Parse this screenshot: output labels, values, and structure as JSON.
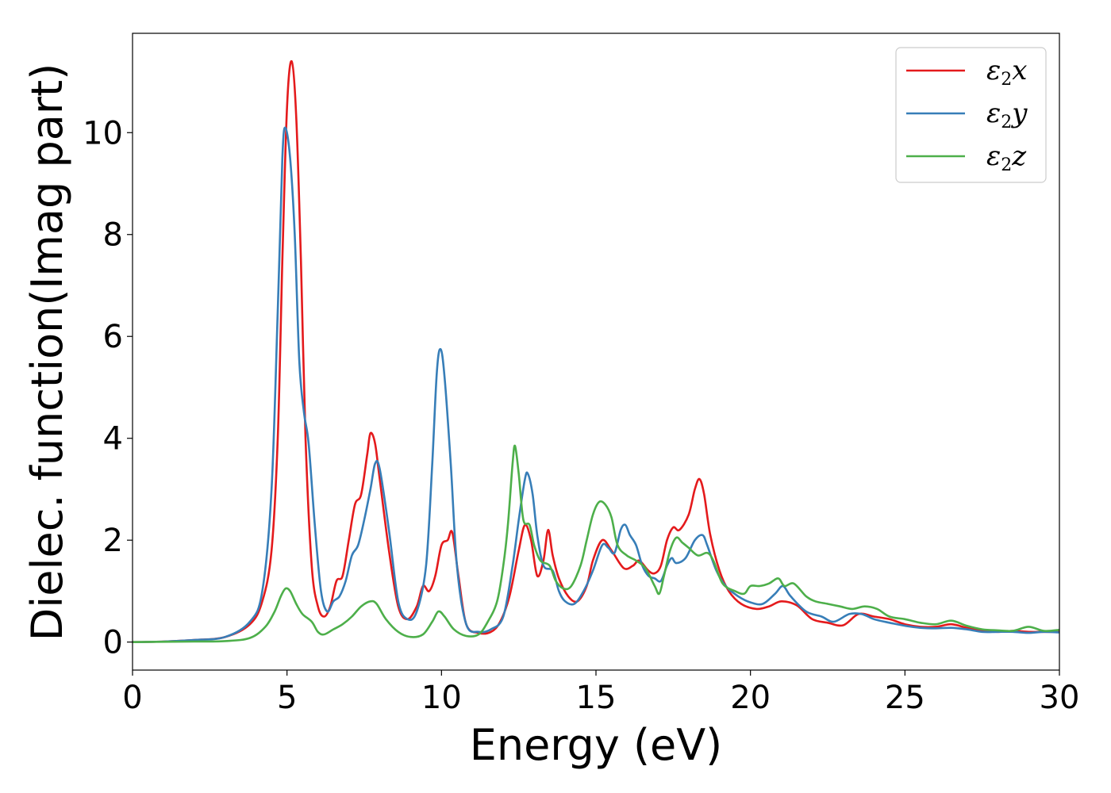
{
  "chart_data": {
    "type": "line",
    "xlabel": "Energy (eV)",
    "ylabel": "Dielec. function(Imag part)",
    "xlim": [
      0,
      30
    ],
    "ylim": [
      -0.55,
      11.95
    ],
    "xticks": [
      0,
      5,
      10,
      15,
      20,
      25,
      30
    ],
    "yticks": [
      0,
      2,
      4,
      6,
      8,
      10
    ],
    "xtick_labels": [
      "0",
      "5",
      "10",
      "15",
      "20",
      "25",
      "30"
    ],
    "ytick_labels": [
      "0",
      "2",
      "4",
      "6",
      "8",
      "10"
    ],
    "grid": false,
    "legend_position": "top-right",
    "series": [
      {
        "name": "ε2x",
        "legend_main": "ε",
        "legend_sub": "2",
        "legend_suffix": "x",
        "color": "#e41a1c",
        "points": [
          [
            0,
            0
          ],
          [
            1,
            0.01
          ],
          [
            2,
            0.04
          ],
          [
            3,
            0.1
          ],
          [
            3.8,
            0.35
          ],
          [
            4.2,
            0.8
          ],
          [
            4.5,
            1.8
          ],
          [
            4.7,
            4.0
          ],
          [
            4.85,
            7.5
          ],
          [
            5.0,
            10.5
          ],
          [
            5.15,
            11.4
          ],
          [
            5.3,
            10.3
          ],
          [
            5.45,
            7.5
          ],
          [
            5.6,
            4.0
          ],
          [
            5.8,
            1.5
          ],
          [
            6.0,
            0.7
          ],
          [
            6.2,
            0.5
          ],
          [
            6.4,
            0.7
          ],
          [
            6.6,
            1.2
          ],
          [
            6.8,
            1.3
          ],
          [
            7.0,
            2.0
          ],
          [
            7.2,
            2.7
          ],
          [
            7.4,
            2.9
          ],
          [
            7.6,
            3.7
          ],
          [
            7.7,
            4.1
          ],
          [
            7.85,
            3.9
          ],
          [
            8.0,
            3.2
          ],
          [
            8.3,
            1.8
          ],
          [
            8.6,
            0.7
          ],
          [
            8.9,
            0.45
          ],
          [
            9.2,
            0.7
          ],
          [
            9.4,
            1.1
          ],
          [
            9.6,
            1.0
          ],
          [
            9.8,
            1.3
          ],
          [
            10.0,
            1.9
          ],
          [
            10.2,
            2.0
          ],
          [
            10.35,
            2.15
          ],
          [
            10.55,
            1.3
          ],
          [
            10.8,
            0.35
          ],
          [
            11.2,
            0.18
          ],
          [
            11.6,
            0.2
          ],
          [
            11.9,
            0.4
          ],
          [
            12.2,
            0.9
          ],
          [
            12.5,
            1.8
          ],
          [
            12.7,
            2.3
          ],
          [
            12.9,
            2.0
          ],
          [
            13.1,
            1.3
          ],
          [
            13.3,
            1.6
          ],
          [
            13.45,
            2.2
          ],
          [
            13.6,
            1.7
          ],
          [
            13.8,
            1.25
          ],
          [
            14.1,
            0.9
          ],
          [
            14.4,
            0.8
          ],
          [
            14.7,
            1.1
          ],
          [
            14.9,
            1.6
          ],
          [
            15.2,
            2.0
          ],
          [
            15.5,
            1.8
          ],
          [
            15.9,
            1.45
          ],
          [
            16.2,
            1.5
          ],
          [
            16.4,
            1.6
          ],
          [
            16.7,
            1.4
          ],
          [
            16.9,
            1.35
          ],
          [
            17.1,
            1.5
          ],
          [
            17.3,
            2.0
          ],
          [
            17.5,
            2.25
          ],
          [
            17.7,
            2.2
          ],
          [
            18.0,
            2.5
          ],
          [
            18.2,
            3.0
          ],
          [
            18.35,
            3.2
          ],
          [
            18.5,
            2.9
          ],
          [
            18.7,
            2.1
          ],
          [
            19.0,
            1.4
          ],
          [
            19.3,
            1.0
          ],
          [
            19.7,
            0.75
          ],
          [
            20.2,
            0.65
          ],
          [
            20.6,
            0.7
          ],
          [
            21.0,
            0.8
          ],
          [
            21.5,
            0.72
          ],
          [
            22.0,
            0.45
          ],
          [
            22.5,
            0.38
          ],
          [
            23.0,
            0.33
          ],
          [
            23.5,
            0.55
          ],
          [
            24.0,
            0.5
          ],
          [
            24.5,
            0.45
          ],
          [
            25.0,
            0.35
          ],
          [
            25.5,
            0.3
          ],
          [
            26.0,
            0.3
          ],
          [
            26.5,
            0.35
          ],
          [
            27.0,
            0.28
          ],
          [
            27.5,
            0.22
          ],
          [
            28.0,
            0.2
          ],
          [
            28.5,
            0.22
          ],
          [
            29.0,
            0.2
          ],
          [
            29.5,
            0.2
          ],
          [
            30.0,
            0.2
          ]
        ]
      },
      {
        "name": "ε2y",
        "legend_main": "ε",
        "legend_sub": "2",
        "legend_suffix": "y",
        "color": "#377eb8",
        "points": [
          [
            0,
            0
          ],
          [
            1,
            0.01
          ],
          [
            2,
            0.04
          ],
          [
            3,
            0.1
          ],
          [
            3.8,
            0.4
          ],
          [
            4.2,
            1.0
          ],
          [
            4.5,
            3.0
          ],
          [
            4.7,
            6.5
          ],
          [
            4.85,
            9.5
          ],
          [
            4.95,
            10.1
          ],
          [
            5.1,
            9.5
          ],
          [
            5.25,
            8.0
          ],
          [
            5.4,
            5.5
          ],
          [
            5.55,
            4.5
          ],
          [
            5.7,
            3.9
          ],
          [
            5.9,
            2.3
          ],
          [
            6.1,
            1.0
          ],
          [
            6.3,
            0.6
          ],
          [
            6.5,
            0.8
          ],
          [
            6.7,
            0.9
          ],
          [
            6.9,
            1.2
          ],
          [
            7.1,
            1.7
          ],
          [
            7.3,
            1.9
          ],
          [
            7.5,
            2.4
          ],
          [
            7.7,
            3.0
          ],
          [
            7.85,
            3.5
          ],
          [
            8.0,
            3.4
          ],
          [
            8.3,
            2.2
          ],
          [
            8.6,
            0.8
          ],
          [
            8.9,
            0.45
          ],
          [
            9.2,
            0.6
          ],
          [
            9.5,
            1.5
          ],
          [
            9.7,
            3.5
          ],
          [
            9.85,
            5.3
          ],
          [
            9.97,
            5.75
          ],
          [
            10.1,
            5.2
          ],
          [
            10.3,
            3.5
          ],
          [
            10.5,
            1.5
          ],
          [
            10.8,
            0.35
          ],
          [
            11.2,
            0.2
          ],
          [
            11.6,
            0.25
          ],
          [
            12.0,
            0.5
          ],
          [
            12.3,
            1.5
          ],
          [
            12.5,
            2.4
          ],
          [
            12.7,
            3.2
          ],
          [
            12.8,
            3.3
          ],
          [
            12.95,
            2.9
          ],
          [
            13.1,
            2.1
          ],
          [
            13.3,
            1.5
          ],
          [
            13.6,
            1.4
          ],
          [
            13.8,
            1.0
          ],
          [
            14.0,
            0.8
          ],
          [
            14.3,
            0.75
          ],
          [
            14.6,
            1.0
          ],
          [
            14.9,
            1.4
          ],
          [
            15.2,
            1.9
          ],
          [
            15.4,
            1.85
          ],
          [
            15.6,
            1.75
          ],
          [
            15.8,
            2.2
          ],
          [
            15.95,
            2.3
          ],
          [
            16.1,
            2.1
          ],
          [
            16.3,
            1.9
          ],
          [
            16.5,
            1.5
          ],
          [
            16.7,
            1.3
          ],
          [
            16.9,
            1.25
          ],
          [
            17.1,
            1.2
          ],
          [
            17.3,
            1.5
          ],
          [
            17.45,
            1.65
          ],
          [
            17.6,
            1.55
          ],
          [
            17.9,
            1.65
          ],
          [
            18.2,
            2.0
          ],
          [
            18.45,
            2.1
          ],
          [
            18.6,
            1.9
          ],
          [
            18.9,
            1.4
          ],
          [
            19.2,
            1.1
          ],
          [
            19.6,
            0.9
          ],
          [
            20.0,
            0.78
          ],
          [
            20.4,
            0.75
          ],
          [
            20.8,
            0.95
          ],
          [
            21.05,
            1.1
          ],
          [
            21.3,
            0.9
          ],
          [
            21.8,
            0.6
          ],
          [
            22.3,
            0.5
          ],
          [
            22.7,
            0.4
          ],
          [
            23.2,
            0.55
          ],
          [
            23.6,
            0.55
          ],
          [
            24.0,
            0.45
          ],
          [
            24.5,
            0.38
          ],
          [
            25.0,
            0.32
          ],
          [
            25.5,
            0.28
          ],
          [
            26.0,
            0.27
          ],
          [
            26.5,
            0.28
          ],
          [
            27.0,
            0.25
          ],
          [
            27.5,
            0.2
          ],
          [
            28.0,
            0.2
          ],
          [
            28.5,
            0.2
          ],
          [
            29.0,
            0.18
          ],
          [
            29.5,
            0.2
          ],
          [
            30.0,
            0.19
          ]
        ]
      },
      {
        "name": "ε2z",
        "legend_main": "ε",
        "legend_sub": "2",
        "legend_suffix": "z",
        "color": "#4daf4a",
        "points": [
          [
            0,
            0
          ],
          [
            1,
            0.005
          ],
          [
            2,
            0.01
          ],
          [
            3,
            0.02
          ],
          [
            3.8,
            0.08
          ],
          [
            4.3,
            0.3
          ],
          [
            4.6,
            0.6
          ],
          [
            4.8,
            0.9
          ],
          [
            4.95,
            1.05
          ],
          [
            5.1,
            1.0
          ],
          [
            5.3,
            0.75
          ],
          [
            5.5,
            0.55
          ],
          [
            5.8,
            0.4
          ],
          [
            6.0,
            0.2
          ],
          [
            6.2,
            0.15
          ],
          [
            6.5,
            0.25
          ],
          [
            6.8,
            0.35
          ],
          [
            7.1,
            0.5
          ],
          [
            7.4,
            0.7
          ],
          [
            7.7,
            0.8
          ],
          [
            7.9,
            0.75
          ],
          [
            8.2,
            0.45
          ],
          [
            8.6,
            0.2
          ],
          [
            9.0,
            0.1
          ],
          [
            9.4,
            0.15
          ],
          [
            9.7,
            0.4
          ],
          [
            9.9,
            0.6
          ],
          [
            10.1,
            0.5
          ],
          [
            10.4,
            0.25
          ],
          [
            10.8,
            0.12
          ],
          [
            11.2,
            0.15
          ],
          [
            11.5,
            0.4
          ],
          [
            11.8,
            0.8
          ],
          [
            12.0,
            1.5
          ],
          [
            12.15,
            2.3
          ],
          [
            12.3,
            3.5
          ],
          [
            12.38,
            3.85
          ],
          [
            12.5,
            3.3
          ],
          [
            12.65,
            2.4
          ],
          [
            12.85,
            2.3
          ],
          [
            13.0,
            1.9
          ],
          [
            13.2,
            1.6
          ],
          [
            13.5,
            1.5
          ],
          [
            13.7,
            1.2
          ],
          [
            13.95,
            1.05
          ],
          [
            14.2,
            1.1
          ],
          [
            14.5,
            1.5
          ],
          [
            14.7,
            2.0
          ],
          [
            14.9,
            2.5
          ],
          [
            15.1,
            2.75
          ],
          [
            15.3,
            2.7
          ],
          [
            15.5,
            2.45
          ],
          [
            15.7,
            1.9
          ],
          [
            16.0,
            1.7
          ],
          [
            16.3,
            1.6
          ],
          [
            16.6,
            1.45
          ],
          [
            16.9,
            1.1
          ],
          [
            17.05,
            0.95
          ],
          [
            17.2,
            1.3
          ],
          [
            17.4,
            1.8
          ],
          [
            17.6,
            2.05
          ],
          [
            17.8,
            1.95
          ],
          [
            18.0,
            1.85
          ],
          [
            18.3,
            1.7
          ],
          [
            18.6,
            1.75
          ],
          [
            18.8,
            1.6
          ],
          [
            19.1,
            1.15
          ],
          [
            19.5,
            1.0
          ],
          [
            19.8,
            0.95
          ],
          [
            20.0,
            1.1
          ],
          [
            20.3,
            1.1
          ],
          [
            20.6,
            1.15
          ],
          [
            20.9,
            1.25
          ],
          [
            21.1,
            1.1
          ],
          [
            21.4,
            1.15
          ],
          [
            21.8,
            0.9
          ],
          [
            22.1,
            0.8
          ],
          [
            22.5,
            0.75
          ],
          [
            22.9,
            0.7
          ],
          [
            23.3,
            0.65
          ],
          [
            23.7,
            0.7
          ],
          [
            24.1,
            0.65
          ],
          [
            24.5,
            0.5
          ],
          [
            25.0,
            0.45
          ],
          [
            25.5,
            0.38
          ],
          [
            26.0,
            0.35
          ],
          [
            26.5,
            0.42
          ],
          [
            27.0,
            0.32
          ],
          [
            27.5,
            0.25
          ],
          [
            28.0,
            0.23
          ],
          [
            28.5,
            0.22
          ],
          [
            29.0,
            0.3
          ],
          [
            29.5,
            0.22
          ],
          [
            30.0,
            0.24
          ]
        ]
      }
    ]
  }
}
